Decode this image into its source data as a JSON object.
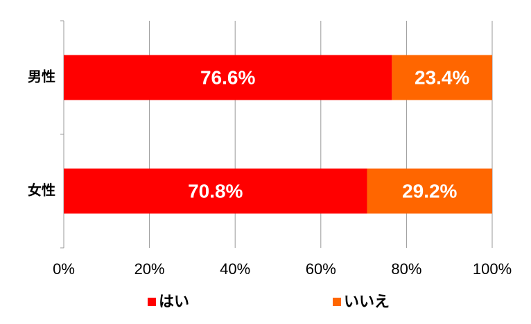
{
  "chart_data": {
    "type": "stacked-barh",
    "categories": [
      "男性",
      "女性"
    ],
    "series": [
      {
        "name": "はい",
        "color": "#ff0000",
        "values": [
          76.6,
          70.8
        ],
        "value_labels": [
          "76.6%",
          "70.8%"
        ]
      },
      {
        "name": "いいえ",
        "color": "#ff6600",
        "values": [
          23.4,
          29.2
        ],
        "value_labels": [
          "23.4%",
          "29.2%"
        ]
      }
    ],
    "xlim": [
      0,
      100
    ],
    "xticks": [
      {
        "value": 0,
        "label": "0%"
      },
      {
        "value": 20,
        "label": "20%"
      },
      {
        "value": 40,
        "label": "40%"
      },
      {
        "value": 60,
        "label": "60%"
      },
      {
        "value": 80,
        "label": "80%"
      },
      {
        "value": 100,
        "label": "100%"
      }
    ],
    "grid": true,
    "legend": "bottom"
  }
}
